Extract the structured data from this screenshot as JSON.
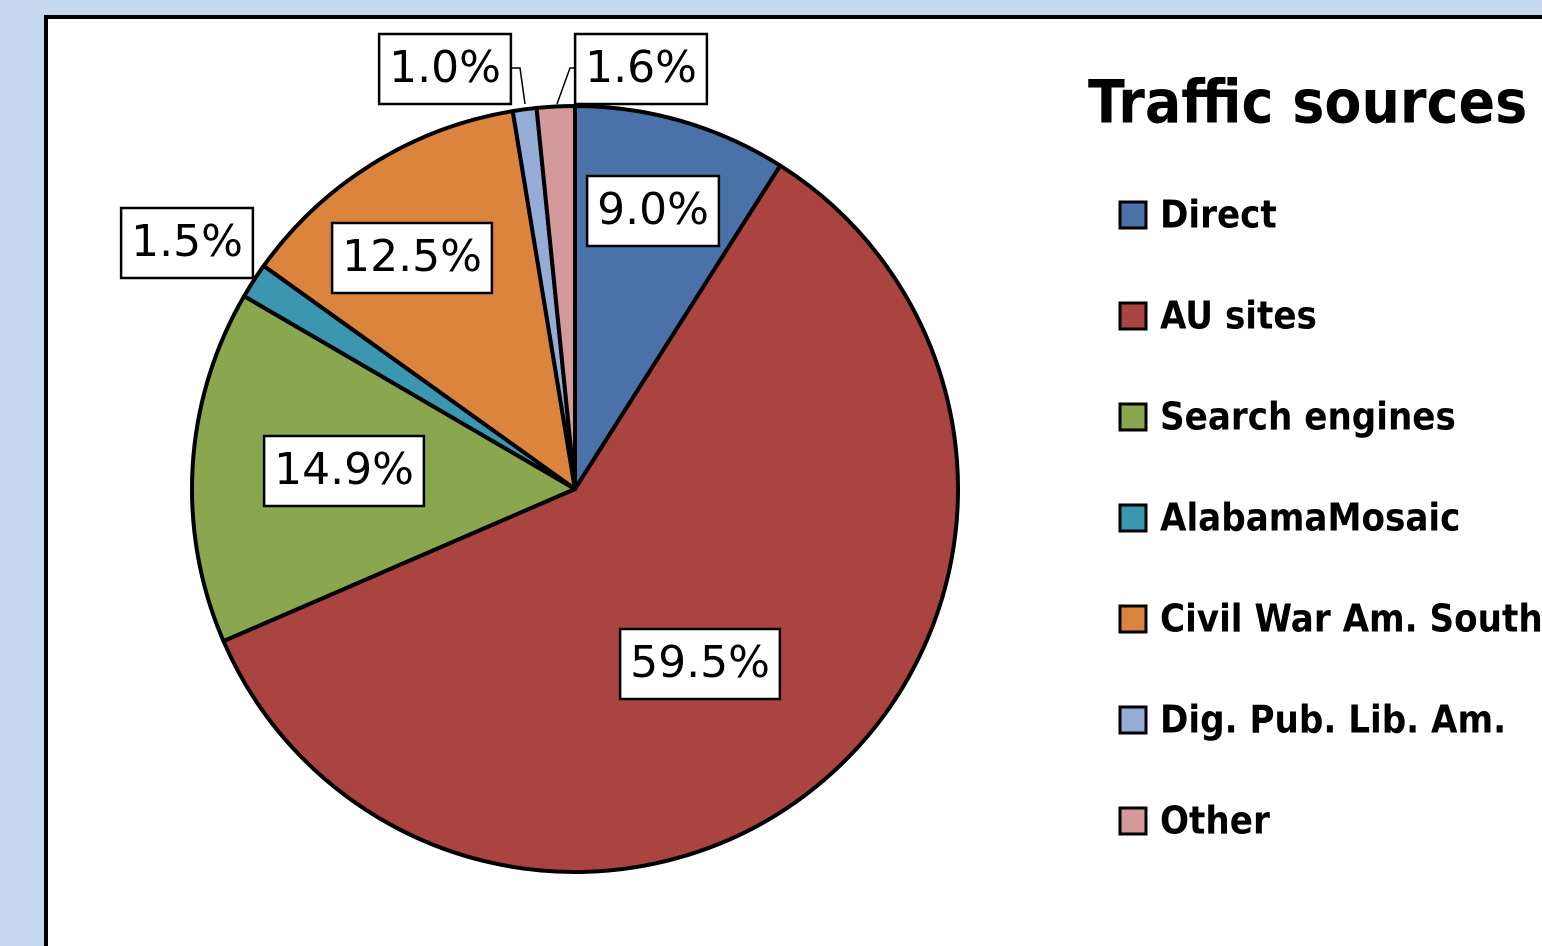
{
  "chart_data": {
    "type": "pie",
    "title": "Traffic sources",
    "categories": [
      "Direct",
      "AU sites",
      "Search engines",
      "AlabamaMosaic",
      "Civil War Am. South",
      "Dig. Pub. Lib. Am.",
      "Other"
    ],
    "values": [
      9.0,
      59.5,
      14.9,
      1.5,
      12.5,
      1.0,
      1.6
    ],
    "value_labels": [
      "9.0%",
      "59.5%",
      "14.9%",
      "1.5%",
      "12.5%",
      "1.0%",
      "1.6%"
    ],
    "colors": [
      "#4a72a8",
      "#a94441",
      "#8aa64e",
      "#3b97b0",
      "#db843d",
      "#95acd6",
      "#d4999a"
    ],
    "legend": "right"
  }
}
